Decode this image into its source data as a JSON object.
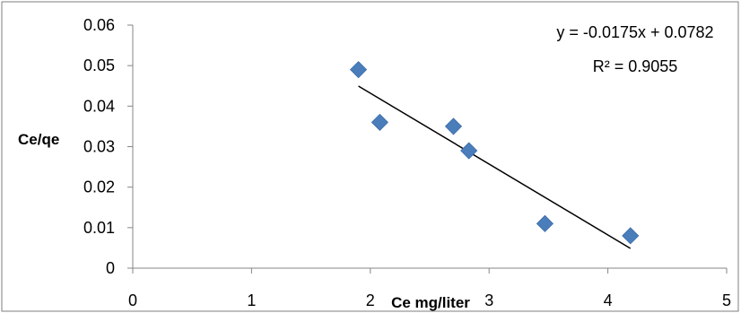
{
  "chart_data": {
    "type": "scatter",
    "xlabel": "Ce mg/liter",
    "ylabel": "Ce/qe",
    "xlim": [
      0,
      5
    ],
    "ylim": [
      0,
      0.06
    ],
    "x_ticks": [
      "0",
      "1",
      "2",
      "3",
      "4",
      "5"
    ],
    "y_ticks": [
      "0",
      "0.01",
      "0.02",
      "0.03",
      "0.04",
      "0.05",
      "0.06"
    ],
    "grid": false,
    "series": [
      {
        "x": [
          1.9,
          2.08,
          2.7,
          2.83,
          3.47,
          4.19
        ],
        "y": [
          0.049,
          0.036,
          0.035,
          0.029,
          0.011,
          0.008
        ],
        "marker": "diamond",
        "color": "#4a7ebb"
      }
    ],
    "trendline": {
      "slope": -0.0175,
      "intercept": 0.0782,
      "x_range": [
        1.9,
        4.19
      ],
      "color": "#000000",
      "equation": "y = -0.0175x + 0.0782",
      "r_squared": "R² = 0.9055"
    }
  }
}
